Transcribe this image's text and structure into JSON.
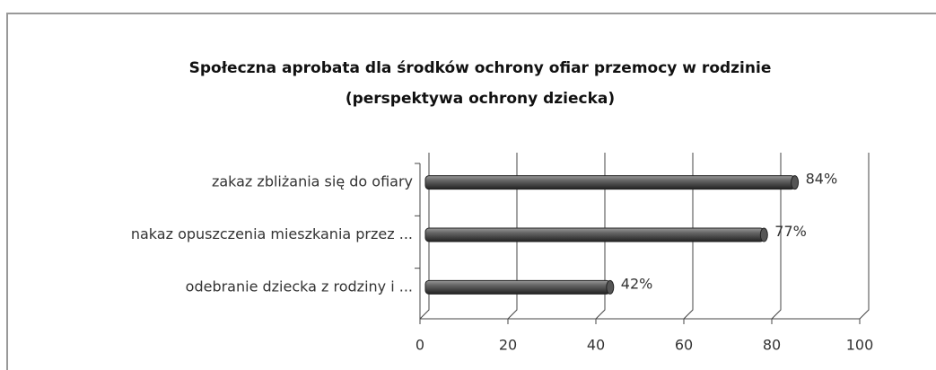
{
  "chart_data": {
    "type": "bar",
    "title": [
      "Społeczna aprobata dla środków ochrony ofiar przemocy w rodzinie",
      "(perspektywa ochrony dziecka)"
    ],
    "categories": [
      "zakaz zbliżania się do  ofiary",
      "nakaz opuszczenia mieszkania przez ...",
      "odebranie dziecka z rodziny i ..."
    ],
    "values": [
      84,
      77,
      42
    ],
    "value_labels": [
      "84%",
      "77%",
      "42%"
    ],
    "color": "#555555",
    "xlim": [
      0,
      100
    ],
    "xticks": [
      0,
      20,
      40,
      60,
      80,
      100
    ],
    "grid": true
  }
}
